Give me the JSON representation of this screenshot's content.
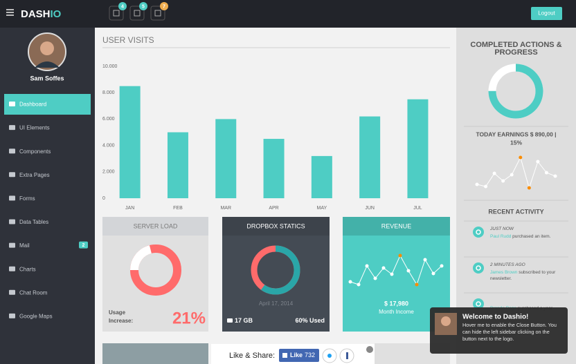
{
  "header": {
    "brand": [
      "DASH",
      "IO"
    ],
    "badges": [
      4,
      5,
      7
    ],
    "logout": "Logout"
  },
  "sidebar": {
    "name": "Sam Soffes",
    "menu": [
      {
        "label": "Dashboard"
      },
      {
        "label": "UI Elements"
      },
      {
        "label": "Components"
      },
      {
        "label": "Extra Pages"
      },
      {
        "label": "Forms"
      },
      {
        "label": "Data Tables"
      },
      {
        "label": "Mail",
        "badge": 2
      },
      {
        "label": "Charts"
      },
      {
        "label": "Chat Room"
      },
      {
        "label": "Google Maps"
      }
    ]
  },
  "chart_data": {
    "type": "bar",
    "title": "USER VISITS",
    "categories": [
      "JAN",
      "FEB",
      "MAR",
      "APR",
      "MAY",
      "JUN",
      "JUL"
    ],
    "values": [
      8500,
      5000,
      6000,
      4500,
      3200,
      6200,
      7500
    ],
    "color": "#4ecdc4",
    "ylim": [
      0,
      10000
    ],
    "yticks": [
      0,
      {
        "value": 2000,
        "label": "2.000"
      },
      {
        "value": 4000,
        "label": "4.000"
      },
      {
        "value": 6000,
        "label": "6.000"
      },
      {
        "value": 8000,
        "label": "8.000"
      },
      {
        "value": 10000,
        "label": "10.000"
      }
    ],
    "grid": false
  },
  "server_load": {
    "title": "SERVER LOAD",
    "value": 21,
    "value_label": "21%",
    "label_lines": [
      "Usage",
      "Increase:"
    ],
    "color": "#ffffff",
    "rest_color": "#ff6b6b"
  },
  "dropbox": {
    "title": "DROPBOX STATICS",
    "value": 60,
    "date": "April 17, 2014",
    "size": "17 GB",
    "value_label": "60% Used",
    "color": "#2aa6a8",
    "rest_color": "#ff6b6b"
  },
  "revenue": {
    "title": "REVENUE",
    "values": [
      12,
      8,
      35,
      17,
      32,
      23,
      50,
      28,
      8,
      44,
      24,
      35
    ],
    "ylim": [
      0,
      60
    ],
    "highlight": [
      6,
      8
    ],
    "color": "#ffffff",
    "highlight_color": "#fa8c00",
    "amount": "$ 17,980",
    "caption": "Month Income"
  },
  "progress": {
    "title_lines": [
      "COMPLETED ACTIONS &",
      "PROGRESS"
    ],
    "value": 75,
    "color": "#4ecdc4",
    "rest_color": "#ffffff",
    "earnings_lines": [
      "TODAY EARNINGS $ 890,00 |",
      "15%"
    ],
    "values": [
      13,
      10,
      29,
      18,
      27,
      52,
      8,
      46,
      30,
      25
    ],
    "ylim": [
      0,
      60
    ],
    "highlight": [
      5,
      6
    ],
    "line_color": "#ffffff",
    "highlight_color": "#fa8c00"
  },
  "activity": {
    "title": "RECENT ACTIVITY",
    "items": [
      {
        "time": "JUST NOW",
        "user": "Paul Rudd",
        "text": "purchased an item."
      },
      {
        "time": "2 MINUTES AGO",
        "user": "James Brown",
        "text": "subscribed to your newsletter."
      },
      {
        "user": "Brando Page",
        "text": "purchased a year"
      }
    ]
  },
  "notification": {
    "title": "Welcome to Dashio!",
    "body": "Hover me to enable the Close Button. You can hide the left sidebar clicking on the button next to the logo."
  },
  "share": {
    "label": "Like & Share:",
    "like_label": "Like",
    "like_count": 732
  }
}
